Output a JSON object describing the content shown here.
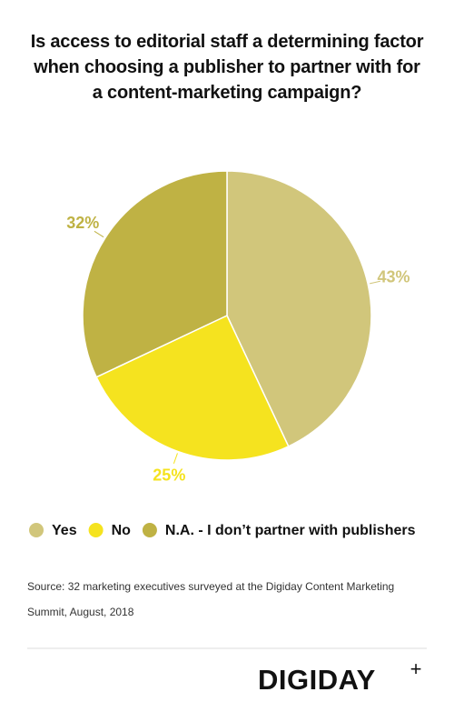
{
  "chart_data": {
    "type": "pie",
    "title": "Is access to editorial staff a determining factor when choosing a publisher to partner with for a content-marketing campaign?",
    "categories": [
      "Yes",
      "No",
      "N.A. - I don’t partner with publishers"
    ],
    "values": [
      43,
      25,
      32
    ],
    "value_labels": [
      "43%",
      "25%",
      "32%"
    ],
    "colors": [
      "#d1c67b",
      "#f5e31f",
      "#bfb244"
    ],
    "source": "Source: 32  marketing executives surveyed at the Digiday Content Marketing Summit, August, 2018",
    "logo": "DIGIDAY",
    "logo_mark": "+"
  }
}
